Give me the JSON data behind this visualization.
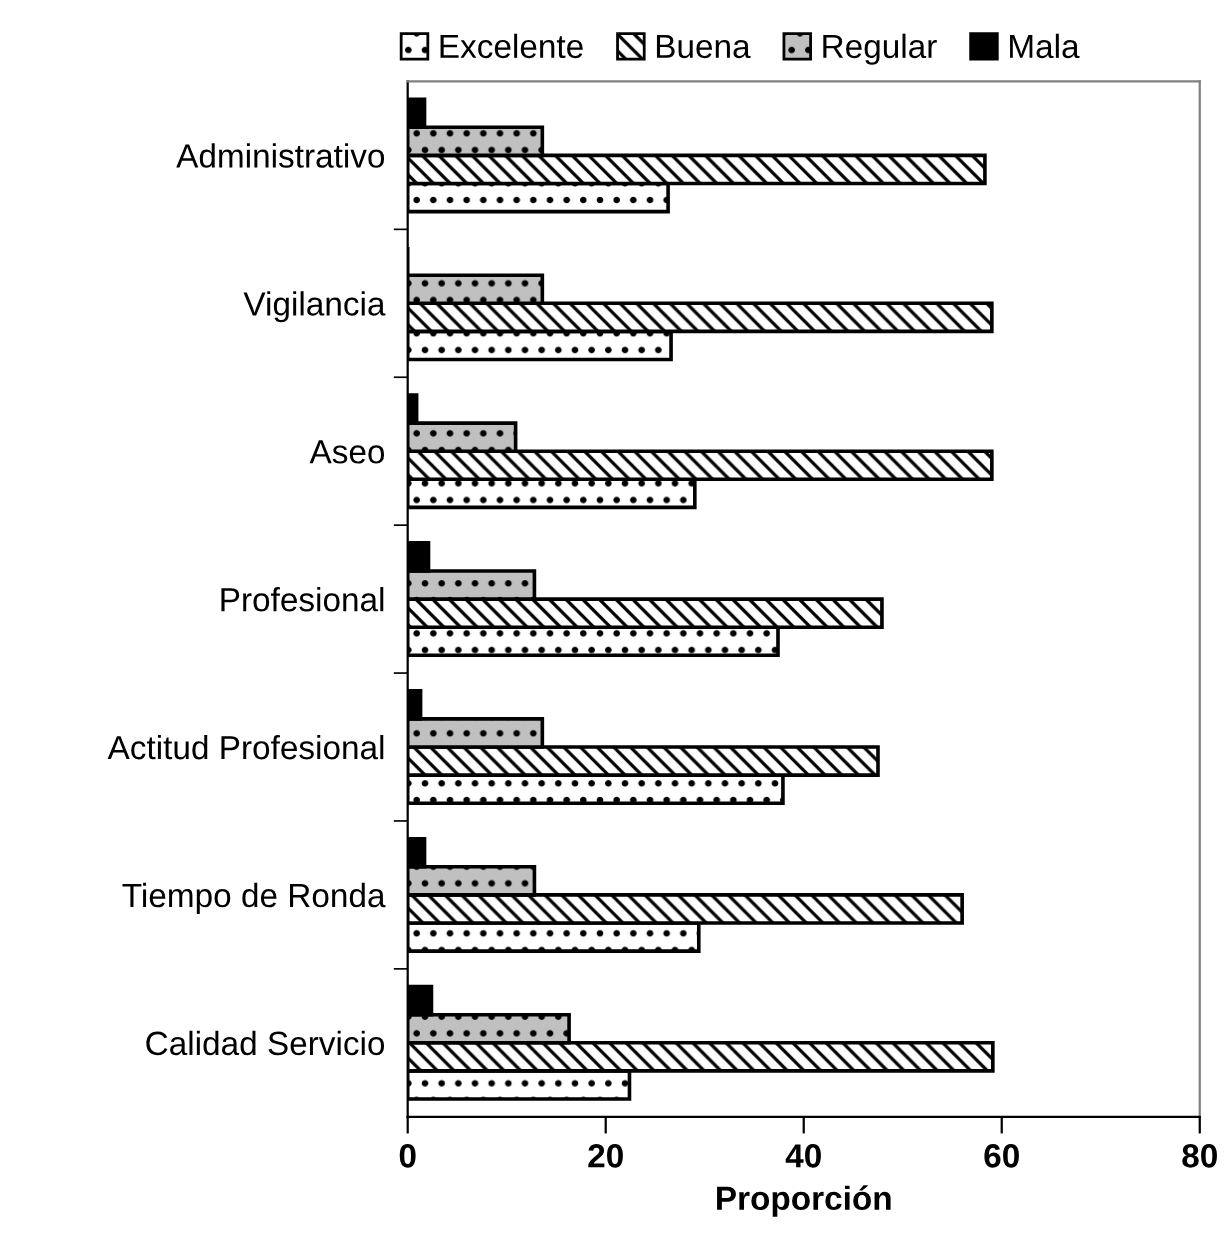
{
  "chart_data": {
    "type": "bar",
    "orientation": "horizontal",
    "xlabel": "Proporción",
    "categories": [
      "Administrativo",
      "Vigilancia",
      "Aseo",
      "Profesional",
      "Actitud Profesional",
      "Tiempo de Ronda",
      "Calidad Servicio"
    ],
    "series": [
      {
        "name": "Excelente",
        "color": "#ffffff",
        "values": [
          26.3,
          26.6,
          29.0,
          37.4,
          37.9,
          29.4,
          22.4
        ]
      },
      {
        "name": "Buena",
        "color": "#ffffff",
        "values": [
          58.3,
          59.0,
          59.0,
          47.9,
          47.5,
          56.0,
          59.1
        ]
      },
      {
        "name": "Regular",
        "color": "#c0c0c0",
        "values": [
          13.6,
          13.6,
          10.9,
          12.8,
          13.6,
          12.8,
          16.3
        ]
      },
      {
        "name": "Mala",
        "color": "#000000",
        "values": [
          1.7,
          0,
          0.9,
          2.1,
          1.3,
          1.7,
          2.4
        ]
      }
    ],
    "xlim": [
      0,
      80
    ],
    "xticks": [
      0,
      20,
      40,
      60,
      80
    ],
    "grid": false,
    "legend": "top"
  }
}
